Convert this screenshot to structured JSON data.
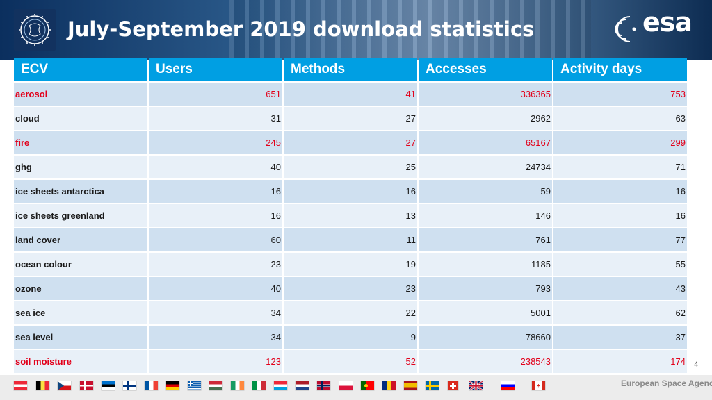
{
  "header": {
    "title": "July-September 2019 download statistics",
    "brand": "esa"
  },
  "table": {
    "columns": [
      "ECV",
      "Users",
      "Methods",
      "Accesses",
      "Activity days"
    ],
    "rows": [
      {
        "ecv": "aerosol",
        "users": "651",
        "methods": "41",
        "accesses": "336365",
        "activity_days": "753",
        "highlight": true
      },
      {
        "ecv": "cloud",
        "users": "31",
        "methods": "27",
        "accesses": "2962",
        "activity_days": "63",
        "highlight": false
      },
      {
        "ecv": "fire",
        "users": "245",
        "methods": "27",
        "accesses": "65167",
        "activity_days": "299",
        "highlight": true
      },
      {
        "ecv": "ghg",
        "users": "40",
        "methods": "25",
        "accesses": "24734",
        "activity_days": "71",
        "highlight": false
      },
      {
        "ecv": "ice sheets antarctica",
        "users": "16",
        "methods": "16",
        "accesses": "59",
        "activity_days": "16",
        "highlight": false
      },
      {
        "ecv": "ice sheets greenland",
        "users": "16",
        "methods": "13",
        "accesses": "146",
        "activity_days": "16",
        "highlight": false
      },
      {
        "ecv": "land cover",
        "users": "60",
        "methods": "11",
        "accesses": "761",
        "activity_days": "77",
        "highlight": false
      },
      {
        "ecv": "ocean colour",
        "users": "23",
        "methods": "19",
        "accesses": "1185",
        "activity_days": "55",
        "highlight": false
      },
      {
        "ecv": "ozone",
        "users": "40",
        "methods": "23",
        "accesses": "793",
        "activity_days": "43",
        "highlight": false
      },
      {
        "ecv": "sea ice",
        "users": "34",
        "methods": "22",
        "accesses": "5001",
        "activity_days": "62",
        "highlight": false
      },
      {
        "ecv": "sea level",
        "users": "34",
        "methods": "9",
        "accesses": "78660",
        "activity_days": "37",
        "highlight": false
      },
      {
        "ecv": "soil moisture",
        "users": "123",
        "methods": "52",
        "accesses": "238543",
        "activity_days": "174",
        "highlight": true
      }
    ]
  },
  "page_number": "4",
  "footer": {
    "agency": "European Space Agency",
    "flags": [
      "austria",
      "belgium",
      "czech-republic",
      "denmark",
      "estonia",
      "finland",
      "france",
      "germany",
      "greece",
      "hungary",
      "ireland",
      "italy",
      "luxembourg",
      "netherlands",
      "norway",
      "poland",
      "portugal",
      "romania",
      "spain",
      "sweden",
      "switzerland",
      "united-kingdom",
      "slovenia",
      "canada"
    ]
  },
  "colors": {
    "header_cell": "#009fe3",
    "row_odd": "#cfe0f0",
    "row_even": "#e8f0f8",
    "highlight_text": "#e2001a"
  }
}
